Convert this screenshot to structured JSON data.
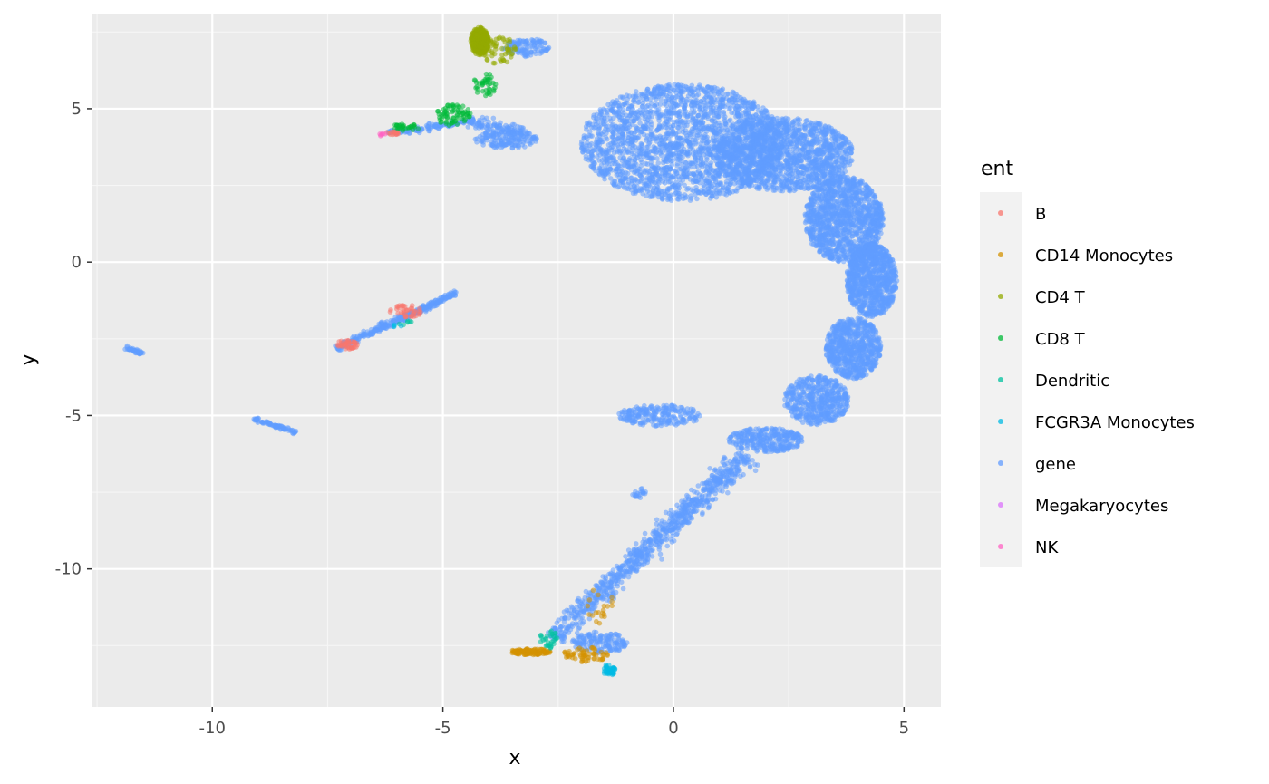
{
  "chart_data": {
    "type": "scatter",
    "title": "",
    "xlabel": "x",
    "ylabel": "y",
    "xlim": [
      -12.6,
      5.8
    ],
    "ylim": [
      -14.5,
      8.1
    ],
    "x_ticks": [
      -10,
      -5,
      0,
      5
    ],
    "x_tick_labels": [
      "-10",
      "-5",
      "0",
      "5"
    ],
    "y_ticks": [
      -10,
      -5,
      0,
      5
    ],
    "y_tick_labels": [
      "-10",
      "-5",
      "0",
      "5"
    ],
    "grid": true,
    "legend_title": "ent",
    "legend_position": "right",
    "series": [
      {
        "name": "B",
        "color": "#F8766D",
        "clusters": [
          {
            "cx": -7.1,
            "cy": -2.7,
            "rx": 0.25,
            "ry": 0.15,
            "n": 40
          },
          {
            "cx": -5.8,
            "cy": -1.6,
            "rx": 0.35,
            "ry": 0.2,
            "n": 40
          },
          {
            "cx": -6.1,
            "cy": 4.2,
            "rx": 0.15,
            "ry": 0.06,
            "n": 15
          }
        ]
      },
      {
        "name": "CD14 Monocytes",
        "color": "#D39200",
        "clusters": [
          {
            "cx": -3.1,
            "cy": -12.7,
            "rx": 0.45,
            "ry": 0.1,
            "n": 120
          },
          {
            "cx": -1.9,
            "cy": -12.8,
            "rx": 0.5,
            "ry": 0.25,
            "n": 60
          },
          {
            "cx": -1.6,
            "cy": -11.2,
            "rx": 0.3,
            "ry": 0.6,
            "n": 20
          }
        ]
      },
      {
        "name": "CD4 T",
        "color": "#93AA00",
        "clusters": [
          {
            "cx": -4.2,
            "cy": 7.2,
            "rx": 0.2,
            "ry": 0.45,
            "n": 260
          },
          {
            "cx": -3.8,
            "cy": 6.9,
            "rx": 0.4,
            "ry": 0.45,
            "n": 60
          }
        ]
      },
      {
        "name": "CD8 T",
        "color": "#00BA38",
        "clusters": [
          {
            "cx": -4.8,
            "cy": 4.8,
            "rx": 0.4,
            "ry": 0.35,
            "n": 70
          },
          {
            "cx": -4.1,
            "cy": 5.8,
            "rx": 0.25,
            "ry": 0.4,
            "n": 40
          },
          {
            "cx": -5.8,
            "cy": 4.4,
            "rx": 0.3,
            "ry": 0.12,
            "n": 30
          }
        ]
      },
      {
        "name": "Dendritic",
        "color": "#00C19F",
        "clusters": [
          {
            "cx": -2.7,
            "cy": -12.3,
            "rx": 0.2,
            "ry": 0.3,
            "n": 30
          },
          {
            "cx": -5.8,
            "cy": -2.0,
            "rx": 0.15,
            "ry": 0.1,
            "n": 6
          }
        ]
      },
      {
        "name": "FCGR3A Monocytes",
        "color": "#00B9E3",
        "clusters": [
          {
            "cx": -1.4,
            "cy": -13.3,
            "rx": 0.15,
            "ry": 0.18,
            "n": 40
          },
          {
            "cx": -6.0,
            "cy": -2.1,
            "rx": 0.1,
            "ry": 0.08,
            "n": 4
          }
        ]
      },
      {
        "name": "gene",
        "color": "#619CFF",
        "clusters": [
          {
            "cx": 0.2,
            "cy": 3.9,
            "rx": 2.2,
            "ry": 1.9,
            "n": 2200
          },
          {
            "cx": 2.4,
            "cy": 3.5,
            "rx": 1.5,
            "ry": 1.2,
            "n": 1400
          },
          {
            "cx": 3.7,
            "cy": 1.4,
            "rx": 0.85,
            "ry": 1.4,
            "n": 1200
          },
          {
            "cx": 4.3,
            "cy": -0.6,
            "rx": 0.55,
            "ry": 1.2,
            "n": 900
          },
          {
            "cx": 3.9,
            "cy": -2.8,
            "rx": 0.6,
            "ry": 1.0,
            "n": 700
          },
          {
            "cx": 3.1,
            "cy": -4.5,
            "rx": 0.7,
            "ry": 0.8,
            "n": 500
          },
          {
            "cx": 2.0,
            "cy": -5.8,
            "rx": 0.8,
            "ry": 0.4,
            "n": 300
          },
          {
            "cx": -0.3,
            "cy": -5.0,
            "rx": 0.9,
            "ry": 0.35,
            "n": 220
          },
          {
            "cx": -3.6,
            "cy": 4.0,
            "rx": 0.7,
            "ry": 0.3,
            "n": 150
          },
          {
            "cx": -3.2,
            "cy": 7.0,
            "rx": 0.5,
            "ry": 0.3,
            "n": 120
          },
          {
            "cx": -1.6,
            "cy": -12.4,
            "rx": 0.6,
            "ry": 0.35,
            "n": 150
          }
        ],
        "strands": [
          {
            "x1": 1.6,
            "y1": -6.3,
            "x2": -1.4,
            "y2": -10.5,
            "n": 600,
            "w": 0.15
          },
          {
            "x1": -1.4,
            "y1": -10.5,
            "x2": -2.6,
            "y2": -12.3,
            "n": 200,
            "w": 0.15
          },
          {
            "x1": -6.2,
            "y1": 4.2,
            "x2": -4.3,
            "y2": 4.6,
            "n": 120,
            "w": 0.05
          },
          {
            "x1": -4.4,
            "y1": 4.6,
            "x2": -3.2,
            "y2": 4.2,
            "n": 100,
            "w": 0.12
          },
          {
            "x1": -7.3,
            "y1": -2.8,
            "x2": -4.7,
            "y2": -1.0,
            "n": 300,
            "w": 0.05
          },
          {
            "x1": -11.9,
            "y1": -2.75,
            "x2": -11.5,
            "y2": -3.0,
            "n": 40,
            "w": 0.03
          },
          {
            "x1": -9.1,
            "y1": -5.1,
            "x2": -8.2,
            "y2": -5.55,
            "n": 80,
            "w": 0.03
          },
          {
            "x1": -0.9,
            "y1": -7.6,
            "x2": -0.6,
            "y2": -7.5,
            "n": 20,
            "w": 0.08
          }
        ]
      },
      {
        "name": "Megakaryocytes",
        "color": "#DB72FB",
        "clusters": []
      },
      {
        "name": "NK",
        "color": "#FF61C3",
        "clusters": [
          {
            "cx": -6.3,
            "cy": 4.15,
            "rx": 0.08,
            "ry": 0.05,
            "n": 6
          }
        ]
      }
    ]
  }
}
